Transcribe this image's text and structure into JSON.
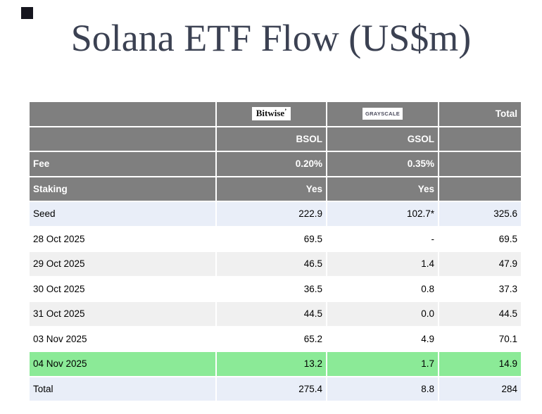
{
  "page": {
    "title": "Solana ETF Flow (US$m)"
  },
  "colors": {
    "title_text": "#3b4152",
    "header_bg": "#7f7f7f",
    "header_text": "#ffffff",
    "blue_row_bg": "#e9eef8",
    "gray_row_bg": "#f0f0f0",
    "green_row_bg": "#8bea97",
    "body_text": "#000000",
    "corner_marker": "#15151e"
  },
  "table": {
    "header": {
      "bitwise_logo": "Bitwise",
      "bitwise_mark": "’",
      "grayscale_logo": "GRAYSCALE",
      "total_label": "Total",
      "bsol_label": "BSOL",
      "gsol_label": "GSOL",
      "fee": {
        "label": "Fee",
        "bsol": "0.20%",
        "gsol": "0.35%"
      },
      "staking": {
        "label": "Staking",
        "bsol": "Yes",
        "gsol": "Yes"
      }
    },
    "rows": [
      {
        "label": "Seed",
        "bsol": "222.9",
        "gsol": "102.7*",
        "total": "325.6",
        "highlight": "blue"
      },
      {
        "label": "28 Oct 2025",
        "bsol": "69.5",
        "gsol": "-",
        "total": "69.5",
        "highlight": "white"
      },
      {
        "label": "29 Oct 2025",
        "bsol": "46.5",
        "gsol": "1.4",
        "total": "47.9",
        "highlight": "gray"
      },
      {
        "label": "30 Oct 2025",
        "bsol": "36.5",
        "gsol": "0.8",
        "total": "37.3",
        "highlight": "white"
      },
      {
        "label": "31 Oct 2025",
        "bsol": "44.5",
        "gsol": "0.0",
        "total": "44.5",
        "highlight": "gray"
      },
      {
        "label": "03 Nov 2025",
        "bsol": "65.2",
        "gsol": "4.9",
        "total": "70.1",
        "highlight": "white"
      },
      {
        "label": "04 Nov 2025",
        "bsol": "13.2",
        "gsol": "1.7",
        "total": "14.9",
        "highlight": "green"
      },
      {
        "label": "Total",
        "bsol": "275.4",
        "gsol": "8.8",
        "total": "284",
        "highlight": "blue"
      }
    ]
  },
  "chart_data": {
    "type": "table",
    "title": "Solana ETF Flow (US$m)",
    "columns": [
      "",
      "Bitwise BSOL",
      "Grayscale GSOL",
      "Total"
    ],
    "issuer_meta": {
      "fee": {
        "BSOL": "0.20%",
        "GSOL": "0.35%"
      },
      "staking": {
        "BSOL": "Yes",
        "GSOL": "Yes"
      }
    },
    "rows": [
      [
        "Seed",
        222.9,
        "102.7*",
        325.6
      ],
      [
        "28 Oct 2025",
        69.5,
        null,
        69.5
      ],
      [
        "29 Oct 2025",
        46.5,
        1.4,
        47.9
      ],
      [
        "30 Oct 2025",
        36.5,
        0.8,
        37.3
      ],
      [
        "31 Oct 2025",
        44.5,
        0.0,
        44.5
      ],
      [
        "03 Nov 2025",
        65.2,
        4.9,
        70.1
      ],
      [
        "04 Nov 2025",
        13.2,
        1.7,
        14.9
      ],
      [
        "Total",
        275.4,
        8.8,
        284
      ]
    ],
    "layout_hints": {
      "highlighted_rows": {
        "04 Nov 2025": "green",
        "Seed": "light-blue",
        "Total": "light-blue"
      },
      "zebra": true
    }
  }
}
